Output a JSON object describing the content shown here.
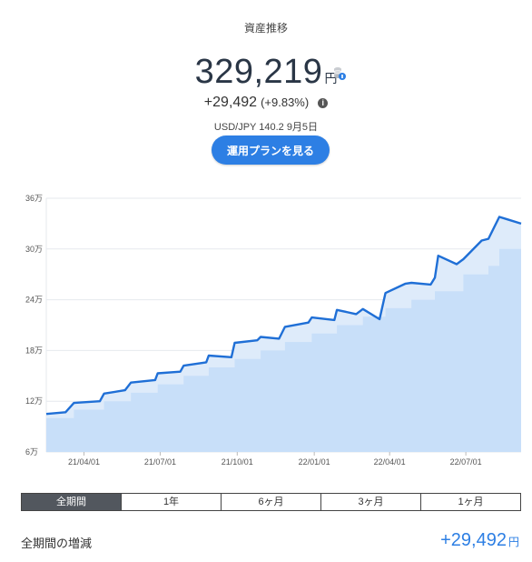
{
  "header": {
    "title": "資産推移",
    "balance": "329,219",
    "balance_unit": "円",
    "gain": "+29,492",
    "gain_pct": "(+9.83%)",
    "info_icon": "i",
    "rate": "USD/JPY 140.2 9月5日",
    "plan_button": "運用プランを見る"
  },
  "colors": {
    "accent": "#2d7fe4",
    "area_fill": "#deebfa",
    "deposit_fill": "#b6d5f7",
    "tab_active": "#52575e"
  },
  "icons": {
    "stack": "coin-stack-icon",
    "info": "info-icon"
  },
  "chart_data": {
    "type": "area",
    "yticks": [
      "36万",
      "30万",
      "24万",
      "18万",
      "12万",
      "6万"
    ],
    "ytick_values": [
      36,
      30,
      24,
      18,
      12,
      6
    ],
    "xticks": [
      "21/04/01",
      "21/07/01",
      "21/10/01",
      "22/01/01",
      "22/04/01",
      "22/07/01"
    ],
    "ylim": [
      6,
      36
    ],
    "xlim": [
      "2021-02-15",
      "2022-09-05"
    ],
    "grid": true,
    "series": [
      {
        "role": "asset_value",
        "points": [
          [
            "2021-02-15",
            10.5
          ],
          [
            "2021-03-10",
            10.7
          ],
          [
            "2021-03-20",
            11.8
          ],
          [
            "2021-04-20",
            12.0
          ],
          [
            "2021-04-25",
            12.9
          ],
          [
            "2021-05-20",
            13.3
          ],
          [
            "2021-05-27",
            14.2
          ],
          [
            "2021-06-25",
            14.5
          ],
          [
            "2021-06-28",
            15.3
          ],
          [
            "2021-07-25",
            15.5
          ],
          [
            "2021-07-29",
            16.2
          ],
          [
            "2021-08-25",
            16.6
          ],
          [
            "2021-08-28",
            17.4
          ],
          [
            "2021-09-24",
            17.2
          ],
          [
            "2021-09-28",
            18.9
          ],
          [
            "2021-10-25",
            19.2
          ],
          [
            "2021-10-29",
            19.6
          ],
          [
            "2021-11-20",
            19.4
          ],
          [
            "2021-11-27",
            20.8
          ],
          [
            "2021-12-25",
            21.3
          ],
          [
            "2021-12-29",
            21.9
          ],
          [
            "2022-01-25",
            21.6
          ],
          [
            "2022-01-28",
            22.8
          ],
          [
            "2022-02-20",
            22.3
          ],
          [
            "2022-02-28",
            22.9
          ],
          [
            "2022-03-20",
            21.7
          ],
          [
            "2022-03-27",
            24.8
          ],
          [
            "2022-04-20",
            25.9
          ],
          [
            "2022-04-27",
            26.0
          ],
          [
            "2022-05-20",
            25.8
          ],
          [
            "2022-05-25",
            26.6
          ],
          [
            "2022-05-29",
            29.2
          ],
          [
            "2022-06-20",
            28.2
          ],
          [
            "2022-06-28",
            28.8
          ],
          [
            "2022-07-20",
            31.0
          ],
          [
            "2022-07-28",
            31.2
          ],
          [
            "2022-08-10",
            33.8
          ],
          [
            "2022-08-20",
            33.5
          ],
          [
            "2022-09-05",
            33.0
          ]
        ]
      },
      {
        "role": "deposits",
        "steps": [
          [
            "2021-02-15",
            10.0
          ],
          [
            "2021-03-20",
            11.0
          ],
          [
            "2021-04-25",
            12.0
          ],
          [
            "2021-05-27",
            13.0
          ],
          [
            "2021-06-28",
            14.0
          ],
          [
            "2021-07-29",
            15.0
          ],
          [
            "2021-08-28",
            16.0
          ],
          [
            "2021-09-28",
            17.0
          ],
          [
            "2021-10-29",
            18.0
          ],
          [
            "2021-11-27",
            19.0
          ],
          [
            "2021-12-29",
            20.0
          ],
          [
            "2022-01-28",
            21.0
          ],
          [
            "2022-02-28",
            22.0
          ],
          [
            "2022-03-27",
            23.0
          ],
          [
            "2022-04-27",
            24.0
          ],
          [
            "2022-05-25",
            25.0
          ],
          [
            "2022-06-28",
            27.0
          ],
          [
            "2022-07-28",
            28.0
          ],
          [
            "2022-08-10",
            30.0
          ],
          [
            "2022-09-05",
            30.0
          ]
        ]
      }
    ]
  },
  "tabs": [
    {
      "label": "全期間",
      "active": true
    },
    {
      "label": "1年",
      "active": false
    },
    {
      "label": "6ヶ月",
      "active": false
    },
    {
      "label": "3ヶ月",
      "active": false
    },
    {
      "label": "1ヶ月",
      "active": false
    }
  ],
  "summary": {
    "label": "全期間の増減",
    "value": "+29,492",
    "unit": "円"
  }
}
